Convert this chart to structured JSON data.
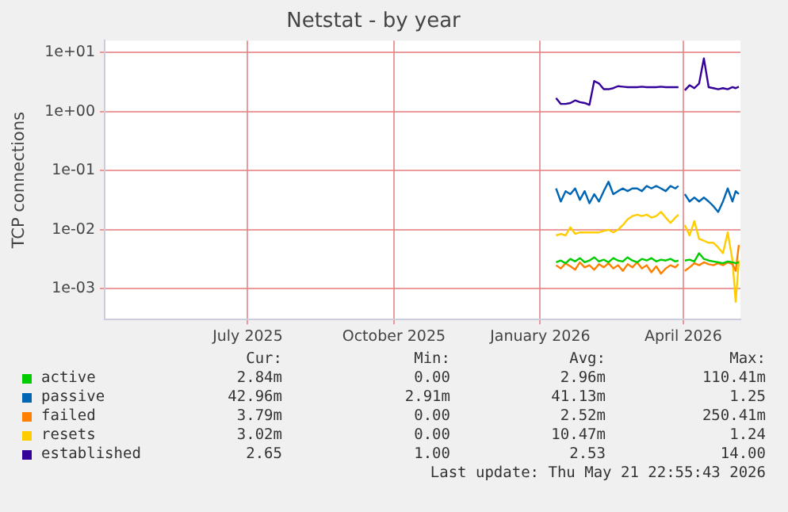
{
  "chart_data": {
    "type": "line",
    "title": "Netstat - by year",
    "ylabel": "TCP connections",
    "log": "y",
    "grid": true,
    "legend": "bottom",
    "marker": "none",
    "line_style": "solid",
    "xlim": [
      "2025-04-17",
      "2026-05-22"
    ],
    "xticks": [
      {
        "value": "2025-07-16",
        "label": "July 2025"
      },
      {
        "value": "2025-10-16",
        "label": "October 2025"
      },
      {
        "value": "2026-01-16",
        "label": "January 2026"
      },
      {
        "value": "2026-04-16",
        "label": "April 2026"
      }
    ],
    "ylim": [
      0.0003,
      16
    ],
    "yticks": [
      {
        "value": 0.001,
        "label": "1e-03"
      },
      {
        "value": 0.01,
        "label": "1e-02"
      },
      {
        "value": 0.1,
        "label": "1e-01"
      },
      {
        "value": 1,
        "label": "1e+00"
      },
      {
        "value": 10,
        "label": "1e+01"
      }
    ],
    "x": [
      "2026-01-26",
      "2026-01-29",
      "2026-02-01",
      "2026-02-04",
      "2026-02-07",
      "2026-02-10",
      "2026-02-13",
      "2026-02-16",
      "2026-02-19",
      "2026-02-22",
      "2026-02-25",
      "2026-02-28",
      "2026-03-03",
      "2026-03-06",
      "2026-03-09",
      "2026-03-12",
      "2026-03-15",
      "2026-03-18",
      "2026-03-21",
      "2026-03-24",
      "2026-03-27",
      "2026-03-30",
      "2026-04-02",
      "2026-04-05",
      "2026-04-08",
      "2026-04-11",
      "2026-04-13",
      "2026-04-15",
      "2026-04-17",
      "2026-04-20",
      "2026-04-23",
      "2026-04-26",
      "2026-04-29",
      "2026-05-02",
      "2026-05-05",
      "2026-05-08",
      "2026-05-11",
      "2026-05-14",
      "2026-05-17",
      "2026-05-19",
      "2026-05-21"
    ],
    "series": [
      {
        "name": "active",
        "color": "#00cc00",
        "values": [
          0.0028,
          0.003,
          0.0027,
          0.0032,
          0.0029,
          0.0033,
          0.0028,
          0.003,
          0.0034,
          0.0029,
          0.0031,
          0.0028,
          0.0033,
          0.003,
          0.0029,
          0.0034,
          0.003,
          0.0028,
          0.0032,
          0.003,
          0.0033,
          0.0029,
          0.0031,
          0.003,
          0.0032,
          0.0029,
          0.003,
          null,
          0.003,
          0.0031,
          0.0029,
          0.004,
          0.0032,
          0.003,
          0.0029,
          0.0028,
          0.0027,
          0.0029,
          0.0028,
          0.0027,
          0.0028
        ]
      },
      {
        "name": "passive",
        "color": "#0066b3",
        "values": [
          0.05,
          0.03,
          0.045,
          0.04,
          0.05,
          0.032,
          0.045,
          0.028,
          0.04,
          0.03,
          0.045,
          0.065,
          0.04,
          0.045,
          0.05,
          0.045,
          0.05,
          0.05,
          0.045,
          0.055,
          0.05,
          0.055,
          0.05,
          0.045,
          0.055,
          0.05,
          0.055,
          null,
          0.04,
          0.03,
          0.035,
          0.03,
          0.035,
          0.03,
          0.025,
          0.02,
          0.03,
          0.05,
          0.03,
          0.045,
          0.04
        ]
      },
      {
        "name": "failed",
        "color": "#ff8000",
        "values": [
          0.0025,
          0.0022,
          0.0027,
          0.0024,
          0.0021,
          0.0028,
          0.0023,
          0.0025,
          0.0021,
          0.0026,
          0.0023,
          0.0027,
          0.0022,
          0.0025,
          0.002,
          0.0026,
          0.0023,
          0.0028,
          0.0022,
          0.0025,
          0.0019,
          0.0024,
          0.0018,
          0.0022,
          0.0025,
          0.0023,
          0.0026,
          null,
          0.002,
          0.0023,
          0.0027,
          0.0025,
          0.0028,
          0.0026,
          0.0025,
          0.0027,
          0.0025,
          0.0028,
          0.0026,
          0.002,
          0.0055
        ]
      },
      {
        "name": "resets",
        "color": "#ffcc00",
        "values": [
          0.008,
          0.0085,
          0.008,
          0.011,
          0.0085,
          0.009,
          0.009,
          0.009,
          0.009,
          0.009,
          0.0095,
          0.01,
          0.009,
          0.01,
          0.012,
          0.015,
          0.017,
          0.018,
          0.017,
          0.018,
          0.016,
          0.017,
          0.02,
          0.016,
          0.013,
          0.016,
          0.018,
          null,
          0.012,
          0.008,
          0.014,
          0.007,
          0.0065,
          0.006,
          0.006,
          0.005,
          0.004,
          0.009,
          0.003,
          0.0006,
          0.003
        ]
      },
      {
        "name": "established",
        "color": "#330099",
        "values": [
          1.7,
          1.35,
          1.35,
          1.4,
          1.55,
          1.45,
          1.4,
          1.3,
          3.3,
          3.0,
          2.4,
          2.4,
          2.5,
          2.7,
          2.65,
          2.6,
          2.6,
          2.6,
          2.65,
          2.6,
          2.6,
          2.6,
          2.65,
          2.6,
          2.6,
          2.6,
          2.6,
          null,
          2.3,
          2.8,
          2.5,
          3.0,
          8.0,
          2.6,
          2.5,
          2.4,
          2.5,
          2.4,
          2.6,
          2.5,
          2.65
        ]
      }
    ],
    "annotations": [
      "Cur:",
      "Min:",
      "Avg:",
      "Max:",
      "2.84m",
      "0.00",
      "2.96m",
      "110.41m",
      "42.96m",
      "2.91m",
      "41.13m",
      "1.25",
      "3.79m",
      "0.00",
      "2.52m",
      "250.41m",
      "3.02m",
      "0.00",
      "10.47m",
      "1.24",
      "2.65",
      "1.00",
      "2.53",
      "14.00",
      "Last update: Thu May 21 22:55:43 2026"
    ]
  }
}
